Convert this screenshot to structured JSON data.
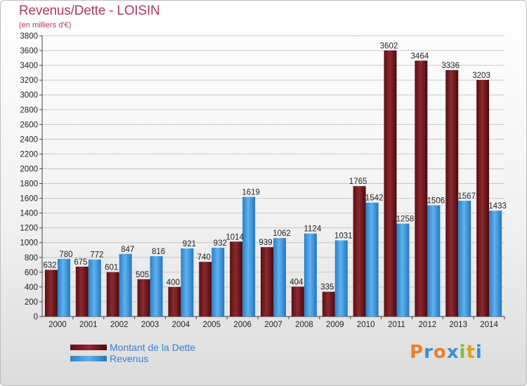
{
  "chart_data": {
    "type": "bar",
    "title": "Revenus/Dette - LOISIN",
    "subtitle": "(en milliers d'€)",
    "xlabel": "",
    "ylabel": "",
    "ylim": [
      0,
      3800
    ],
    "ytick_step": 200,
    "grid": true,
    "categories": [
      "2000",
      "2001",
      "2002",
      "2003",
      "2004",
      "2005",
      "2006",
      "2007",
      "2008",
      "2009",
      "2010",
      "2011",
      "2012",
      "2013",
      "2014"
    ],
    "series": [
      {
        "name": "Montant de la Dette",
        "color": "#7a1f24",
        "values": [
          632,
          675,
          601,
          505,
          400,
          740,
          1014,
          939,
          404,
          335,
          1765,
          3602,
          3464,
          3336,
          3203
        ]
      },
      {
        "name": "Revenus",
        "color": "#3f9be0",
        "values": [
          780,
          772,
          847,
          816,
          921,
          932,
          1619,
          1062,
          1124,
          1031,
          1542,
          1258,
          1506,
          1567,
          1433
        ]
      }
    ]
  },
  "legend": {
    "debt_label": "Montant de la Dette",
    "revenue_label": "Revenus"
  },
  "logo": {
    "letters": [
      "P",
      "r",
      "o",
      "x",
      "i",
      "t",
      "i"
    ],
    "colors": [
      "#e8802a",
      "#3a8fd8",
      "#e8802a",
      "#3a8fd8",
      "#7bbf3a",
      "#e0a020",
      "#3a8fd8"
    ]
  }
}
